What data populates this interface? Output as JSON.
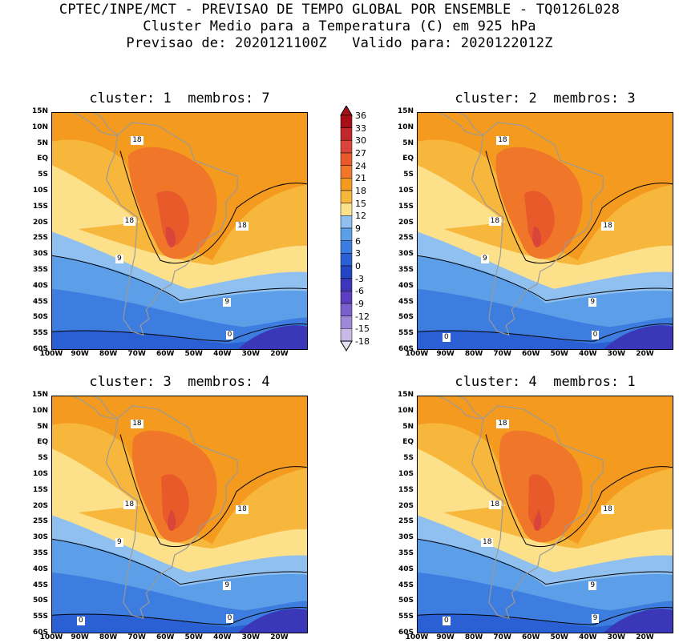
{
  "header": {
    "line1": "CPTEC/INPE/MCT - PREVISAO DE TEMPO GLOBAL POR ENSEMBLE - TQ0126L028",
    "line2": "Cluster Medio para a Temperatura (C) em 925 hPa",
    "line3": "Previsao de: 2020121100Z   Valido para: 2020122012Z"
  },
  "panels": [
    {
      "title": "cluster: 1  membros: 7",
      "contour_labels": [
        "18",
        "18",
        "18",
        "9",
        "9",
        "0"
      ]
    },
    {
      "title": "cluster: 2  membros: 3",
      "contour_labels": [
        "18",
        "18",
        "18",
        "9",
        "9",
        "0",
        "0"
      ]
    },
    {
      "title": "cluster: 3  membros: 4",
      "contour_labels": [
        "18",
        "18",
        "18",
        "9",
        "9",
        "0",
        "0"
      ]
    },
    {
      "title": "cluster: 4  membros: 1",
      "contour_labels": [
        "18",
        "18",
        "18",
        "18",
        "9",
        "9",
        "0"
      ]
    }
  ],
  "lat_labels": [
    "15N",
    "10N",
    "5N",
    "EQ",
    "5S",
    "10S",
    "15S",
    "20S",
    "25S",
    "30S",
    "35S",
    "40S",
    "45S",
    "50S",
    "55S",
    "60S"
  ],
  "lon_labels": [
    "100W",
    "90W",
    "80W",
    "70W",
    "60W",
    "50W",
    "40W",
    "30W",
    "20W"
  ],
  "colorbar": {
    "levels": [
      "36",
      "33",
      "30",
      "27",
      "24",
      "21",
      "18",
      "15",
      "12",
      "9",
      "6",
      "3",
      "0",
      "-3",
      "-6",
      "-9",
      "-12",
      "-15",
      "-18"
    ],
    "colors": [
      "#a50f15",
      "#c0282c",
      "#d9453a",
      "#e85a2a",
      "#f0762a",
      "#f49a1e",
      "#f7b73c",
      "#fde08a",
      "#90c0f0",
      "#5c9ee8",
      "#3d7de0",
      "#2a60d4",
      "#2346c4",
      "#3a37b8",
      "#5a40c0",
      "#7a60cc",
      "#a088d8",
      "#c8b8e8"
    ]
  },
  "palette": {
    "land_outline": "#9a9a9a",
    "contour": "#000000"
  }
}
